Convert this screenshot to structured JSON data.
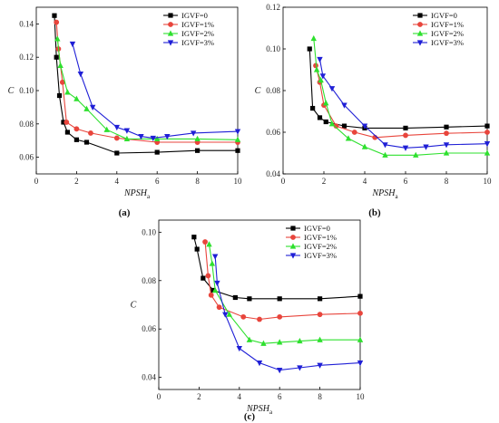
{
  "figure": {
    "panel_labels": [
      "(a)",
      "(b)",
      "(c)"
    ]
  },
  "chart_data": [
    {
      "type": "line",
      "panel": "(a)",
      "xlabel": "NPSH",
      "xlabel_sub": "a",
      "ylabel": "C",
      "xlim": [
        0,
        10
      ],
      "ylim": [
        0.05,
        0.15
      ],
      "xticks": [
        0,
        2,
        4,
        6,
        8,
        10
      ],
      "yticks": [
        0.06,
        0.08,
        0.1,
        0.12,
        0.14
      ],
      "tick_decimals": 2,
      "legend": "top-right",
      "series": [
        {
          "name": "IGVF=0",
          "color": "#000000",
          "marker": "square",
          "x": [
            0.9,
            1.0,
            1.15,
            1.35,
            1.55,
            2.0,
            2.5,
            4.0,
            6.0,
            8.0,
            10.0
          ],
          "y": [
            0.145,
            0.12,
            0.097,
            0.081,
            0.075,
            0.0705,
            0.069,
            0.0625,
            0.063,
            0.064,
            0.064
          ]
        },
        {
          "name": "IGVF=1%",
          "color": "#e8453c",
          "marker": "circle",
          "x": [
            1.0,
            1.1,
            1.3,
            1.5,
            2.0,
            2.7,
            4.0,
            6.0,
            8.0,
            10.0
          ],
          "y": [
            0.141,
            0.125,
            0.105,
            0.081,
            0.077,
            0.0745,
            0.0715,
            0.069,
            0.069,
            0.069
          ]
        },
        {
          "name": "IGVF=2%",
          "color": "#2ee02e",
          "marker": "triangle-up",
          "x": [
            1.05,
            1.2,
            1.55,
            2.0,
            2.5,
            3.5,
            4.5,
            6.0,
            8.0,
            10.0
          ],
          "y": [
            0.131,
            0.115,
            0.099,
            0.095,
            0.089,
            0.0765,
            0.071,
            0.071,
            0.071,
            0.0705
          ]
        },
        {
          "name": "IGVF=3%",
          "color": "#1f1fd6",
          "marker": "triangle-down",
          "x": [
            1.8,
            2.2,
            2.8,
            4.0,
            4.5,
            5.2,
            5.8,
            6.5,
            7.8,
            10.0
          ],
          "y": [
            0.128,
            0.11,
            0.09,
            0.078,
            0.076,
            0.0725,
            0.0715,
            0.0725,
            0.0745,
            0.0755
          ]
        }
      ]
    },
    {
      "type": "line",
      "panel": "(b)",
      "xlabel": "NPSH",
      "xlabel_sub": "a",
      "ylabel": "C",
      "xlim": [
        0,
        10
      ],
      "ylim": [
        0.04,
        0.12
      ],
      "xticks": [
        0,
        2,
        4,
        6,
        8,
        10
      ],
      "yticks": [
        0.04,
        0.06,
        0.08,
        0.1,
        0.12
      ],
      "tick_decimals": 2,
      "legend": "top-right",
      "series": [
        {
          "name": "IGVF=0",
          "color": "#000000",
          "marker": "square",
          "x": [
            1.3,
            1.45,
            1.8,
            2.1,
            3.0,
            4.0,
            6.0,
            8.0,
            10.0
          ],
          "y": [
            0.1,
            0.0715,
            0.067,
            0.065,
            0.063,
            0.062,
            0.062,
            0.0625,
            0.063
          ]
        },
        {
          "name": "IGVF=1%",
          "color": "#e8453c",
          "marker": "circle",
          "x": [
            1.6,
            1.8,
            2.0,
            2.6,
            3.5,
            4.5,
            6.0,
            8.0,
            10.0
          ],
          "y": [
            0.092,
            0.084,
            0.073,
            0.063,
            0.06,
            0.0575,
            0.0585,
            0.0595,
            0.06
          ]
        },
        {
          "name": "IGVF=2%",
          "color": "#2ee02e",
          "marker": "triangle-up",
          "x": [
            1.5,
            1.65,
            1.85,
            2.1,
            2.4,
            3.2,
            4.0,
            5.0,
            6.5,
            8.0,
            10.0
          ],
          "y": [
            0.105,
            0.09,
            0.085,
            0.074,
            0.064,
            0.057,
            0.053,
            0.049,
            0.049,
            0.05,
            0.05
          ]
        },
        {
          "name": "IGVF=3%",
          "color": "#1f1fd6",
          "marker": "triangle-down",
          "x": [
            1.8,
            1.95,
            2.4,
            3.0,
            4.0,
            5.0,
            6.0,
            7.0,
            8.0,
            10.0
          ],
          "y": [
            0.095,
            0.087,
            0.081,
            0.073,
            0.063,
            0.054,
            0.0525,
            0.053,
            0.054,
            0.0545
          ]
        }
      ]
    },
    {
      "type": "line",
      "panel": "(c)",
      "xlabel": "NPSH",
      "xlabel_sub": "a",
      "ylabel": "C",
      "xlim": [
        0,
        10
      ],
      "ylim": [
        0.035,
        0.105
      ],
      "xticks": [
        0,
        2,
        4,
        6,
        8,
        10
      ],
      "yticks": [
        0.04,
        0.06,
        0.08,
        0.1
      ],
      "tick_decimals": 2,
      "legend": "top-right",
      "series": [
        {
          "name": "IGVF=0",
          "color": "#000000",
          "marker": "square",
          "x": [
            1.75,
            1.9,
            2.2,
            2.7,
            3.8,
            4.5,
            6.0,
            8.0,
            10.0
          ],
          "y": [
            0.098,
            0.093,
            0.081,
            0.076,
            0.073,
            0.0725,
            0.0725,
            0.0725,
            0.0735
          ]
        },
        {
          "name": "IGVF=1%",
          "color": "#e8453c",
          "marker": "circle",
          "x": [
            2.3,
            2.45,
            2.6,
            3.0,
            4.2,
            5.0,
            6.0,
            8.0,
            10.0
          ],
          "y": [
            0.096,
            0.082,
            0.074,
            0.069,
            0.065,
            0.064,
            0.065,
            0.066,
            0.0665
          ]
        },
        {
          "name": "IGVF=2%",
          "color": "#2ee02e",
          "marker": "triangle-up",
          "x": [
            2.5,
            2.65,
            2.8,
            3.5,
            4.5,
            5.2,
            6.0,
            7.0,
            8.0,
            10.0
          ],
          "y": [
            0.095,
            0.087,
            0.076,
            0.066,
            0.0555,
            0.054,
            0.0545,
            0.055,
            0.0555,
            0.0555
          ]
        },
        {
          "name": "IGVF=3%",
          "color": "#1f1fd6",
          "marker": "triangle-down",
          "x": [
            2.8,
            2.9,
            3.3,
            4.0,
            5.0,
            6.0,
            7.0,
            8.0,
            10.0
          ],
          "y": [
            0.09,
            0.079,
            0.066,
            0.052,
            0.046,
            0.043,
            0.044,
            0.045,
            0.046
          ]
        }
      ]
    }
  ]
}
